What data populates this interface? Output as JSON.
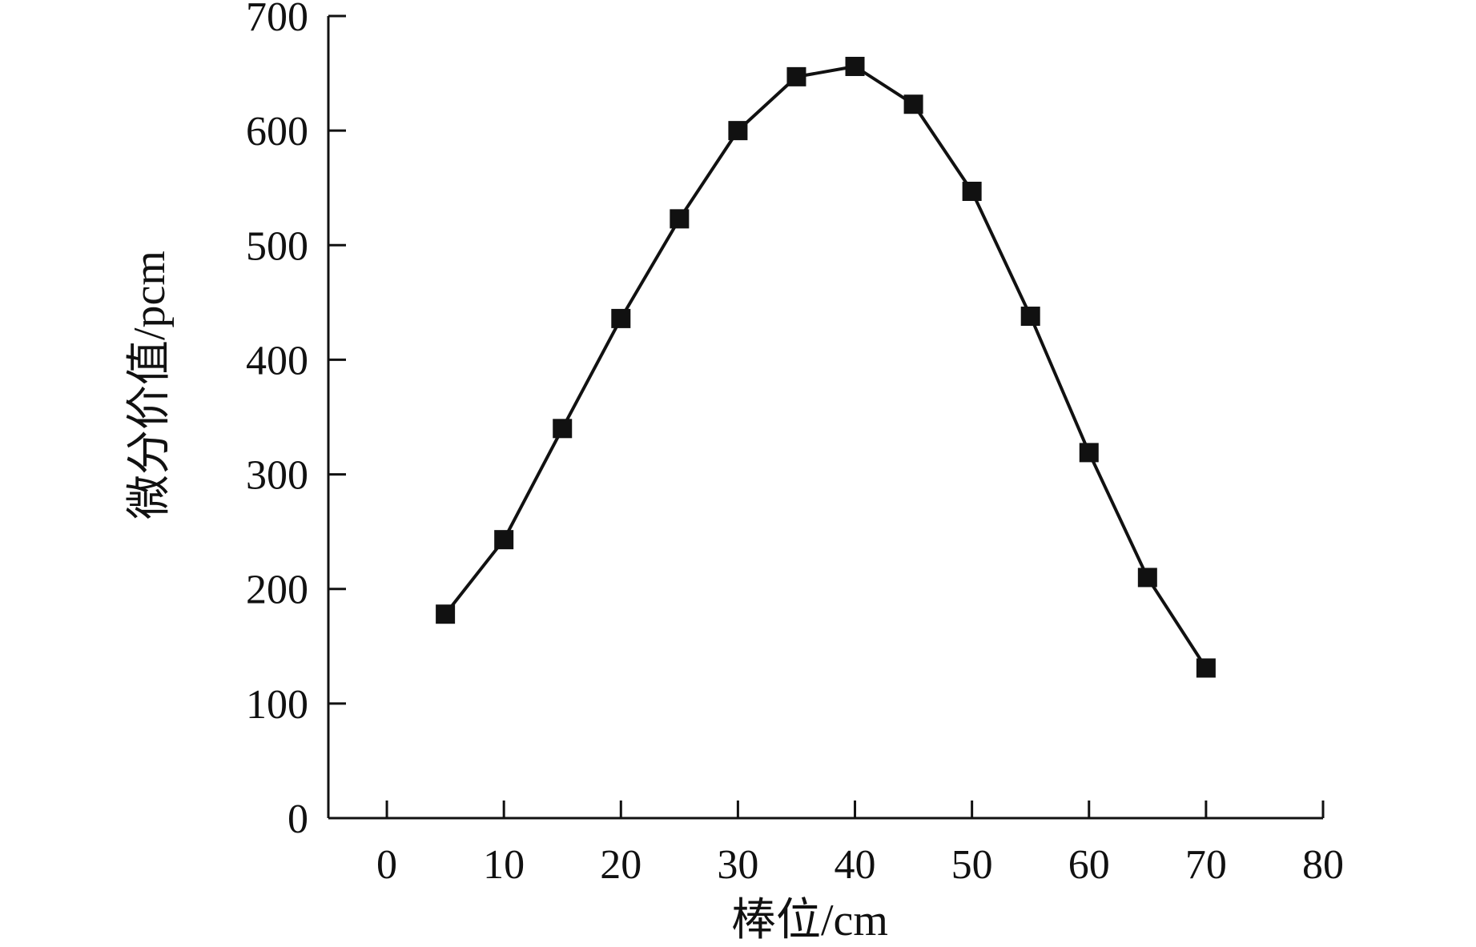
{
  "chart_data": {
    "type": "line",
    "xlabel": "棒位/cm",
    "ylabel": "微分价值/pcm",
    "xlim": [
      -5,
      80
    ],
    "ylim": [
      0,
      700
    ],
    "x_ticks": [
      0,
      10,
      20,
      30,
      40,
      50,
      60,
      70,
      80
    ],
    "y_ticks": [
      0,
      100,
      200,
      300,
      400,
      500,
      600,
      700
    ],
    "grid": false,
    "marker": "square",
    "series": [
      {
        "x": [
          5,
          10,
          15,
          20,
          25,
          30,
          35,
          40,
          45,
          50,
          55,
          60,
          65,
          70
        ],
        "y": [
          178,
          243,
          340,
          436,
          523,
          600,
          647,
          656,
          623,
          547,
          438,
          319,
          210,
          131
        ]
      }
    ],
    "colors": {
      "line": "#111111",
      "marker": "#111111",
      "axis": "#111111"
    }
  }
}
